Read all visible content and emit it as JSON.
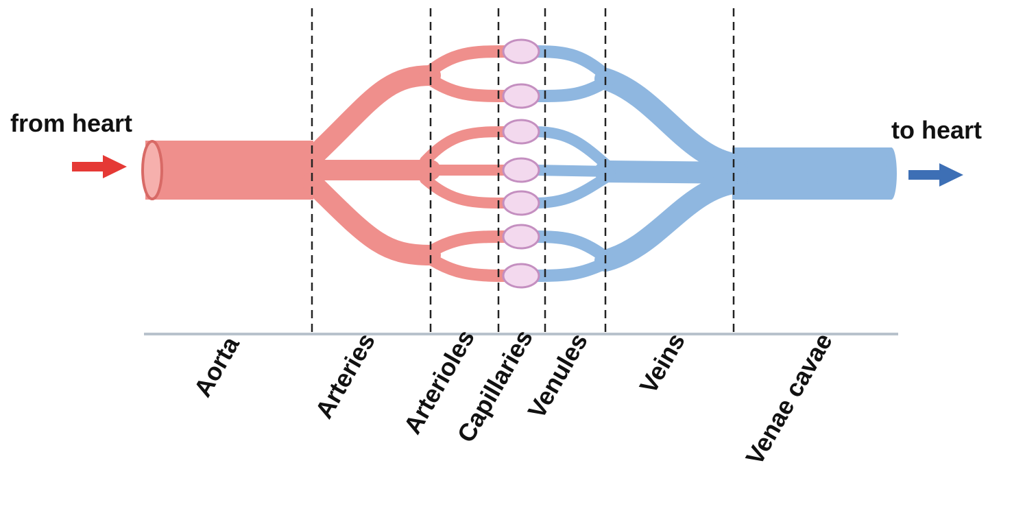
{
  "flow": {
    "in_label": "from heart",
    "out_label": "to heart"
  },
  "segments": [
    "Aorta",
    "Arteries",
    "Arterioles",
    "Capillaries",
    "Venules",
    "Veins",
    "Venae cavae"
  ]
}
